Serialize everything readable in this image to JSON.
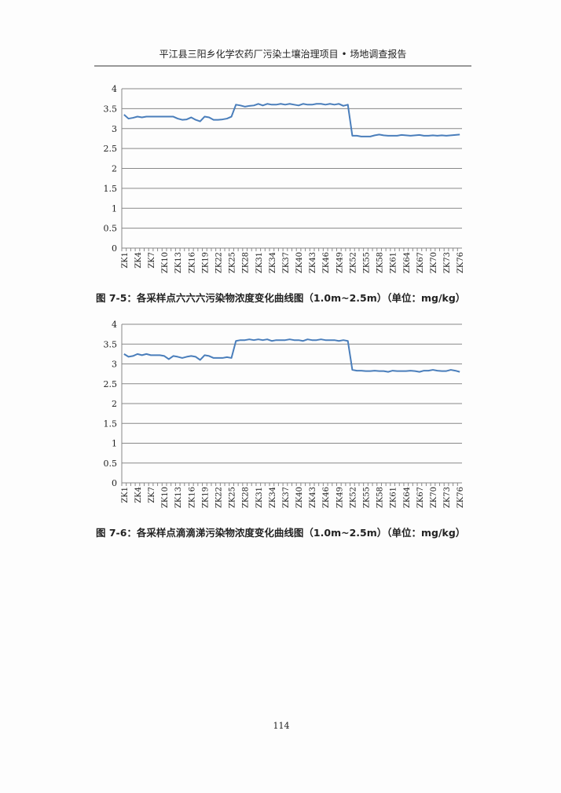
{
  "header": {
    "title": "平江县三阳乡化学农药厂污染土壤治理项目 • 场地调查报告"
  },
  "chart_data": [
    {
      "type": "line",
      "caption": "图 7-5：各采样点六六六污染物浓度变化曲线图（1.0m~2.5m）（单位：mg/kg）",
      "categories": [
        "ZK1",
        null,
        null,
        "ZK4",
        null,
        null,
        "ZK7",
        null,
        null,
        "ZK10",
        null,
        null,
        "ZK13",
        null,
        null,
        "ZK16",
        null,
        null,
        "ZK19",
        null,
        null,
        "ZK22",
        null,
        null,
        "ZK25",
        null,
        null,
        "ZK28",
        null,
        null,
        "ZK31",
        null,
        null,
        "ZK34",
        null,
        null,
        "ZK37",
        null,
        null,
        "ZK40",
        null,
        null,
        "ZK43",
        null,
        null,
        "ZK46",
        null,
        null,
        "ZK49",
        null,
        null,
        "ZK52",
        null,
        null,
        "ZK55",
        null,
        null,
        "ZK58",
        null,
        null,
        "ZK61",
        null,
        null,
        "ZK64",
        null,
        null,
        "ZK67",
        null,
        null,
        "ZK70",
        null,
        null,
        "ZK73",
        null,
        null,
        "ZK76"
      ],
      "values": [
        3.35,
        3.25,
        3.27,
        3.3,
        3.28,
        3.3,
        3.3,
        3.3,
        3.3,
        3.3,
        3.3,
        3.3,
        3.25,
        3.22,
        3.23,
        3.28,
        3.22,
        3.18,
        3.3,
        3.28,
        3.22,
        3.22,
        3.23,
        3.25,
        3.3,
        3.6,
        3.58,
        3.55,
        3.57,
        3.58,
        3.62,
        3.58,
        3.62,
        3.6,
        3.6,
        3.62,
        3.6,
        3.62,
        3.6,
        3.58,
        3.62,
        3.6,
        3.6,
        3.62,
        3.62,
        3.6,
        3.62,
        3.6,
        3.62,
        3.57,
        3.6,
        2.82,
        2.82,
        2.8,
        2.8,
        2.8,
        2.83,
        2.85,
        2.83,
        2.82,
        2.82,
        2.82,
        2.84,
        2.83,
        2.82,
        2.83,
        2.84,
        2.82,
        2.82,
        2.83,
        2.82,
        2.83,
        2.82,
        2.83,
        2.84,
        2.85
      ],
      "color": "#4a7ebb",
      "ylim": [
        0,
        4
      ],
      "yticks": [
        0,
        0.5,
        1,
        1.5,
        2,
        2.5,
        3,
        3.5,
        4
      ],
      "grid": true
    },
    {
      "type": "line",
      "caption": "图 7-6：各采样点滴滴涕污染物浓度变化曲线图（1.0m~2.5m）（单位：mg/kg）",
      "categories": [
        "ZK1",
        null,
        null,
        "ZK4",
        null,
        null,
        "ZK7",
        null,
        null,
        "ZK10",
        null,
        null,
        "ZK13",
        null,
        null,
        "ZK16",
        null,
        null,
        "ZK19",
        null,
        null,
        "ZK22",
        null,
        null,
        "ZK25",
        null,
        null,
        "ZK28",
        null,
        null,
        "ZK31",
        null,
        null,
        "ZK34",
        null,
        null,
        "ZK37",
        null,
        null,
        "ZK40",
        null,
        null,
        "ZK43",
        null,
        null,
        "ZK46",
        null,
        null,
        "ZK49",
        null,
        null,
        "ZK52",
        null,
        null,
        "ZK55",
        null,
        null,
        "ZK58",
        null,
        null,
        "ZK61",
        null,
        null,
        "ZK64",
        null,
        null,
        "ZK67",
        null,
        null,
        "ZK70",
        null,
        null,
        "ZK73",
        null,
        null,
        "ZK76"
      ],
      "values": [
        3.25,
        3.18,
        3.2,
        3.25,
        3.22,
        3.25,
        3.22,
        3.22,
        3.22,
        3.2,
        3.12,
        3.2,
        3.18,
        3.15,
        3.18,
        3.2,
        3.18,
        3.1,
        3.22,
        3.2,
        3.15,
        3.15,
        3.15,
        3.17,
        3.15,
        3.58,
        3.6,
        3.6,
        3.62,
        3.6,
        3.62,
        3.6,
        3.62,
        3.58,
        3.6,
        3.6,
        3.6,
        3.62,
        3.6,
        3.6,
        3.58,
        3.62,
        3.6,
        3.6,
        3.62,
        3.6,
        3.6,
        3.6,
        3.58,
        3.6,
        3.58,
        2.85,
        2.83,
        2.83,
        2.82,
        2.82,
        2.83,
        2.82,
        2.82,
        2.8,
        2.83,
        2.82,
        2.82,
        2.82,
        2.83,
        2.82,
        2.8,
        2.83,
        2.83,
        2.85,
        2.83,
        2.82,
        2.82,
        2.85,
        2.83,
        2.8
      ],
      "color": "#4a7ebb",
      "ylim": [
        0,
        4
      ],
      "yticks": [
        0,
        0.5,
        1,
        1.5,
        2,
        2.5,
        3,
        3.5,
        4
      ],
      "grid": true
    }
  ],
  "page_number": "114"
}
